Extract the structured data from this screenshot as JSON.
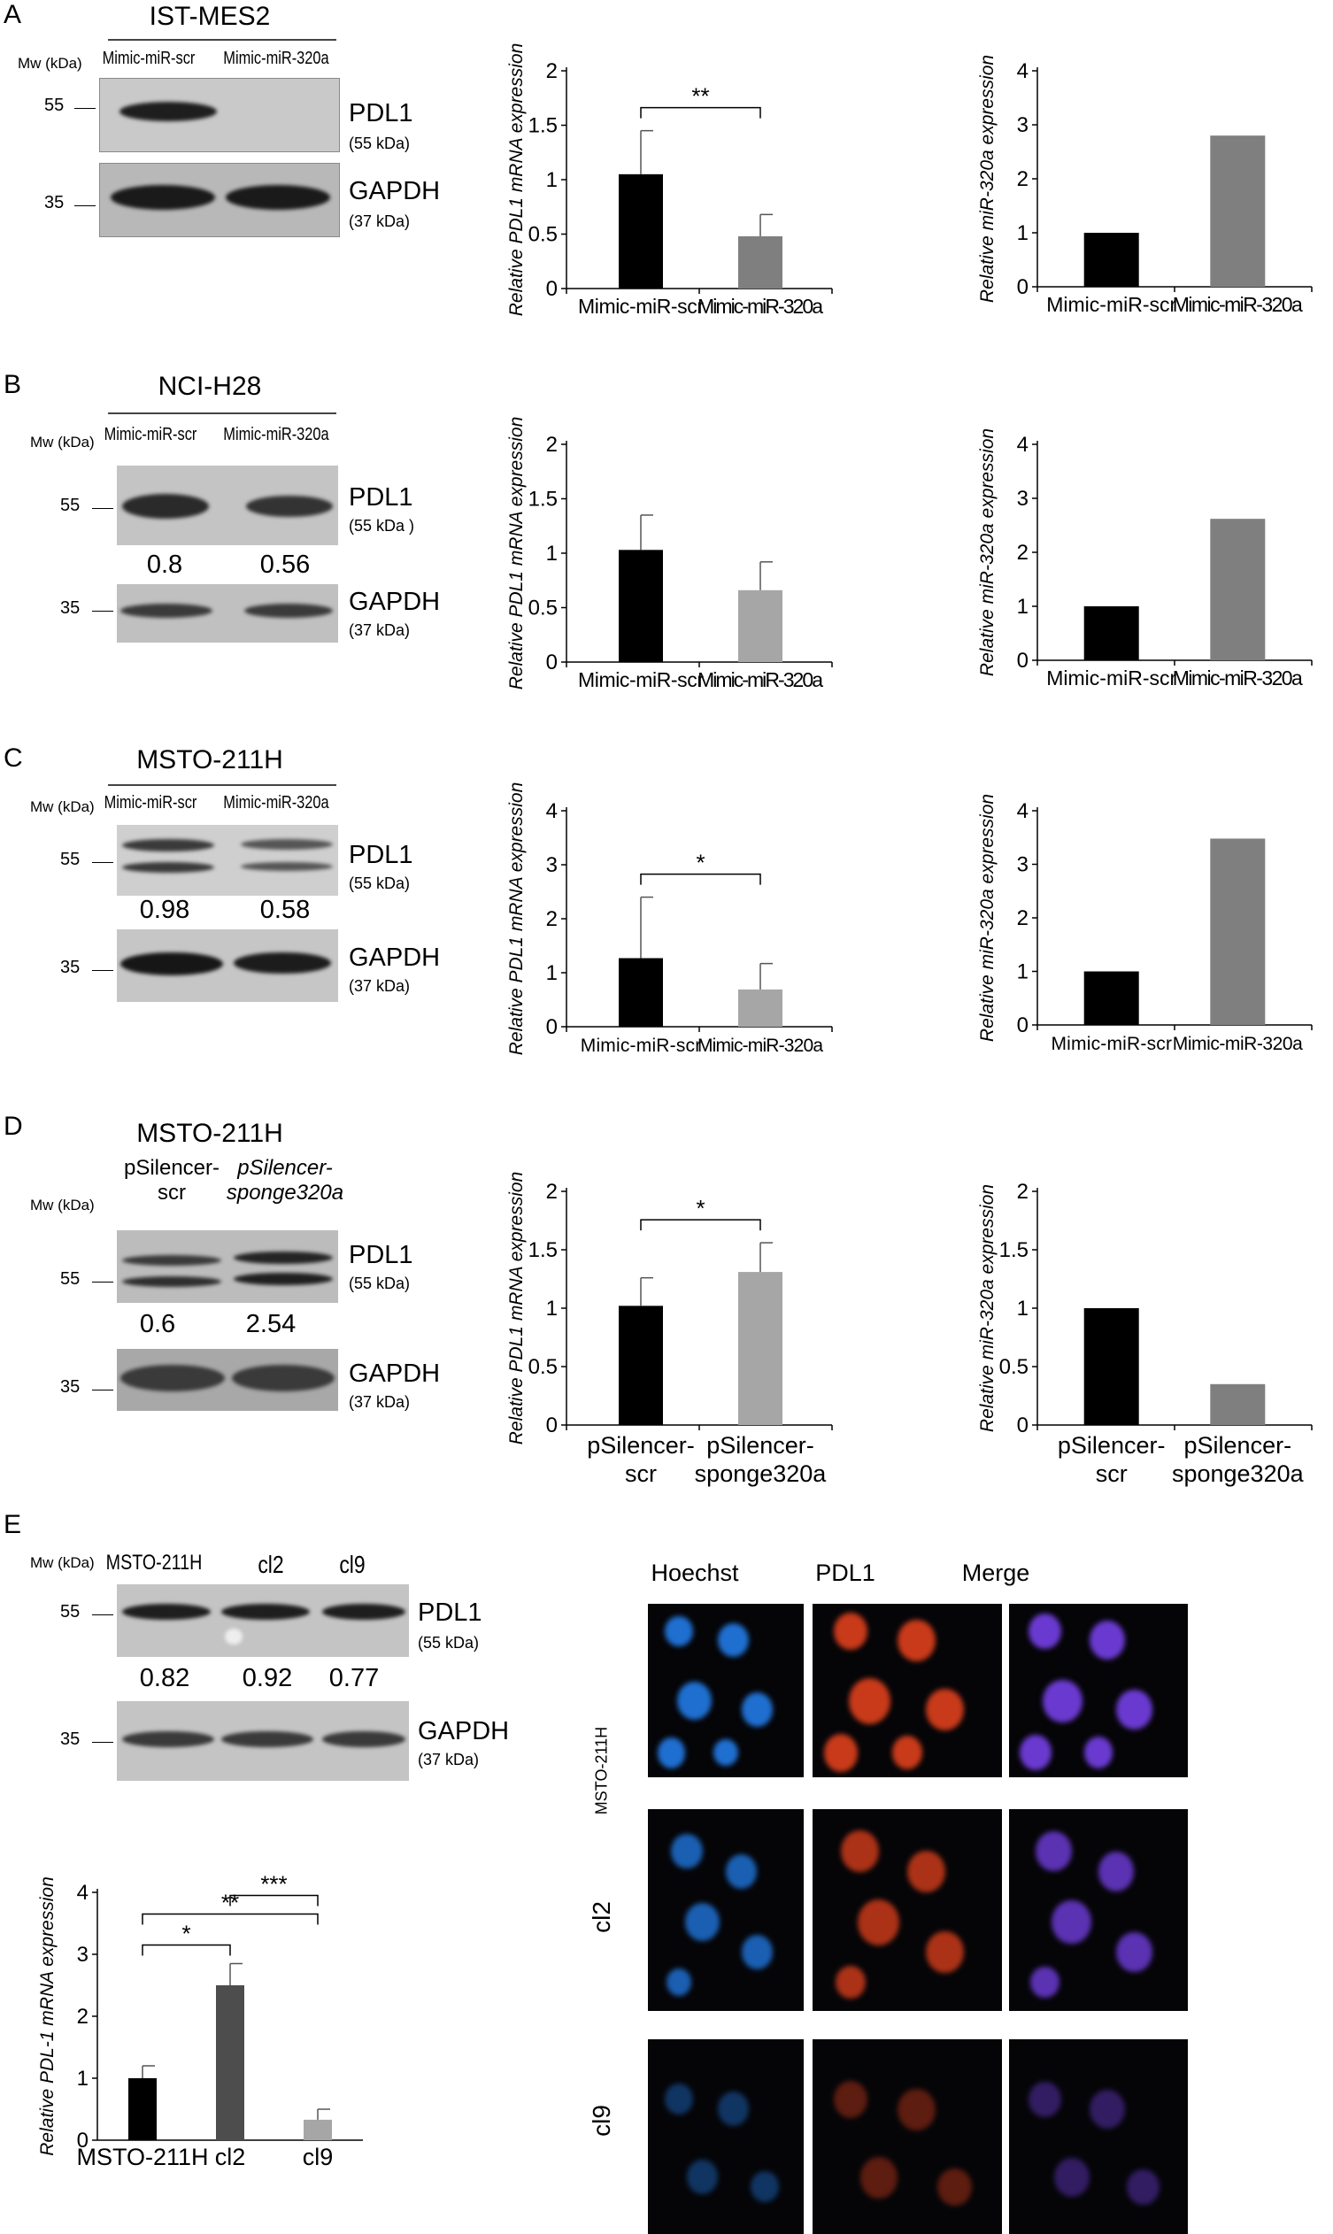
{
  "panels": [
    {
      "letter": "A",
      "cell_line": "IST-MES2",
      "mw_label": "Mw (kDa)",
      "lanes": [
        "Mimic-miR-scr",
        "Mimic-miR-320a"
      ],
      "mw_markers": [
        "55",
        "35"
      ],
      "bands": [
        {
          "name": "PDL1",
          "kda": "(55 kDa)"
        },
        {
          "name": "GAPDH",
          "kda": "(37 kDa)"
        }
      ],
      "quant": []
    },
    {
      "letter": "B",
      "cell_line": "NCI-H28",
      "mw_label": "Mw (kDa)",
      "lanes": [
        "Mimic-miR-scr",
        "Mimic-miR-320a"
      ],
      "mw_markers": [
        "55",
        "35"
      ],
      "bands": [
        {
          "name": "PDL1",
          "kda": "(55 kDa )"
        },
        {
          "name": "GAPDH",
          "kda": "(37 kDa)"
        }
      ],
      "quant": [
        "0.8",
        "0.56"
      ]
    },
    {
      "letter": "C",
      "cell_line": "MSTO-211H",
      "mw_label": "Mw (kDa)",
      "lanes": [
        "Mimic-miR-scr",
        "Mimic-miR-320a"
      ],
      "mw_markers": [
        "55",
        "35"
      ],
      "bands": [
        {
          "name": "PDL1",
          "kda": "(55 kDa)"
        },
        {
          "name": "GAPDH",
          "kda": "(37 kDa)"
        }
      ],
      "quant": [
        "0.98",
        "0.58"
      ]
    },
    {
      "letter": "D",
      "cell_line": "MSTO-211H",
      "mw_label": "Mw (kDa)",
      "lanes": [
        "pSilencer-scr",
        "pSilencer-sponge320a"
      ],
      "lanes_line1": [
        "pSilencer-",
        "pSilencer-"
      ],
      "lanes_line2": [
        "scr",
        "sponge320a"
      ],
      "mw_markers": [
        "55",
        "35"
      ],
      "bands": [
        {
          "name": "PDL1",
          "kda": "(55 kDa)"
        },
        {
          "name": "GAPDH",
          "kda": "(37 kDa)"
        }
      ],
      "quant": [
        "0.6",
        "2.54"
      ]
    },
    {
      "letter": "E",
      "cell_line": "",
      "mw_label": "Mw (kDa)",
      "lanes": [
        "MSTO-211H",
        "cl2",
        "cl9"
      ],
      "mw_markers": [
        "55",
        "35"
      ],
      "bands": [
        {
          "name": "PDL1",
          "kda": "(55 kDa)"
        },
        {
          "name": "GAPDH",
          "kda": "(37 kDa)"
        }
      ],
      "quant": [
        "0.82",
        "0.92",
        "0.77"
      ]
    }
  ],
  "microscopy": {
    "columns": [
      "Hoechst",
      "PDL1",
      "Merge"
    ],
    "rows": [
      "MSTO-211H",
      "cl2",
      "cl9"
    ],
    "colors": {
      "hoechst": "#1f6fd0",
      "pdl1": "#c83a1a",
      "merge": "#6a3ad0"
    }
  },
  "chart_data": [
    {
      "id": "A-pdl1",
      "type": "bar",
      "categories": [
        "Mimic-miR-scr",
        "Mimic-miR-320a"
      ],
      "values": [
        1.05,
        0.48
      ],
      "errors": [
        0.4,
        0.2
      ],
      "ylabel": "Relative PDL1 mRNA expression",
      "ylim": [
        0,
        2
      ],
      "yticks": [
        "0",
        "0.5",
        "1",
        "1.5",
        "2"
      ],
      "ytick_values": [
        0,
        0.5,
        1,
        1.5,
        2
      ],
      "colors": [
        "#000000",
        "#7f7f7f"
      ],
      "significance": [
        {
          "from": 0,
          "to": 1,
          "label": "**"
        }
      ]
    },
    {
      "id": "A-mir",
      "type": "bar",
      "categories": [
        "Mimic-miR-scr",
        "Mimic-miR-320a"
      ],
      "values": [
        1.0,
        2.8
      ],
      "errors": [],
      "ylabel": "Relative miR-320a expression",
      "ylim": [
        0,
        4
      ],
      "yticks": [
        "0",
        "1",
        "2",
        "3",
        "4"
      ],
      "ytick_values": [
        0,
        1,
        2,
        3,
        4
      ],
      "colors": [
        "#000000",
        "#7f7f7f"
      ],
      "significance": []
    },
    {
      "id": "B-pdl1",
      "type": "bar",
      "categories": [
        "Mimic-miR-scr",
        "Mimic-miR-320a"
      ],
      "values": [
        1.03,
        0.66
      ],
      "errors": [
        0.32,
        0.26
      ],
      "ylabel": "Relative PDL1 mRNA expression",
      "ylim": [
        0,
        2
      ],
      "yticks": [
        "0",
        "0.5",
        "1",
        "1.5",
        "2"
      ],
      "ytick_values": [
        0,
        0.5,
        1,
        1.5,
        2
      ],
      "colors": [
        "#000000",
        "#a6a6a6"
      ],
      "significance": []
    },
    {
      "id": "B-mir",
      "type": "bar",
      "categories": [
        "Mimic-miR-scr",
        "Mimic-miR-320a"
      ],
      "values": [
        1.0,
        2.62
      ],
      "errors": [],
      "ylabel": "Relative miR-320a expression",
      "ylim": [
        0,
        4
      ],
      "yticks": [
        "0",
        "1",
        "2",
        "3",
        "4"
      ],
      "ytick_values": [
        0,
        1,
        2,
        3,
        4
      ],
      "colors": [
        "#000000",
        "#7f7f7f"
      ],
      "significance": []
    },
    {
      "id": "C-pdl1",
      "type": "bar",
      "categories": [
        "Mimic-miR-scr",
        "Mimic-miR-320a"
      ],
      "values": [
        1.27,
        0.69
      ],
      "errors": [
        1.13,
        0.48
      ],
      "ylabel": "Relative PDL1 mRNA expression",
      "ylim": [
        0,
        4
      ],
      "yticks": [
        "0",
        "1",
        "2",
        "3",
        "4"
      ],
      "ytick_values": [
        0,
        1,
        2,
        3,
        4
      ],
      "colors": [
        "#000000",
        "#a6a6a6"
      ],
      "significance": [
        {
          "from": 0,
          "to": 1,
          "label": "*"
        }
      ]
    },
    {
      "id": "C-mir",
      "type": "bar",
      "categories": [
        "Mimic-miR-scr",
        "Mimic-miR-320a"
      ],
      "values": [
        1.0,
        3.48
      ],
      "errors": [],
      "ylabel": "Relative miR-320a expression",
      "ylim": [
        0,
        4
      ],
      "yticks": [
        "0",
        "1",
        "2",
        "3",
        "4"
      ],
      "ytick_values": [
        0,
        1,
        2,
        3,
        4
      ],
      "colors": [
        "#000000",
        "#7f7f7f"
      ],
      "significance": []
    },
    {
      "id": "D-pdl1",
      "type": "bar",
      "categories": [
        "pSilencer-scr",
        "pSilencer-sponge320a"
      ],
      "values": [
        1.02,
        1.31
      ],
      "errors": [
        0.24,
        0.25
      ],
      "ylabel": "Relative PDL1 mRNA expression",
      "ylim": [
        0,
        2
      ],
      "yticks": [
        "0",
        "0.5",
        "1",
        "1.5",
        "2"
      ],
      "ytick_values": [
        0,
        0.5,
        1,
        1.5,
        2
      ],
      "colors": [
        "#000000",
        "#a6a6a6"
      ],
      "significance": [
        {
          "from": 0,
          "to": 1,
          "label": "*"
        }
      ]
    },
    {
      "id": "D-mir",
      "type": "bar",
      "categories": [
        "pSilencer-scr",
        "pSilencer-sponge320a"
      ],
      "values": [
        1.0,
        0.35
      ],
      "errors": [],
      "ylabel": "Relative miR-320a expression",
      "ylim": [
        0,
        2
      ],
      "yticks": [
        "0",
        "0.5",
        "1",
        "1.5",
        "2"
      ],
      "ytick_values": [
        0,
        0.5,
        1,
        1.5,
        2
      ],
      "colors": [
        "#000000",
        "#7f7f7f"
      ],
      "significance": []
    },
    {
      "id": "E-pdl1",
      "type": "bar",
      "categories": [
        "MSTO-211H",
        "cl2",
        "cl9"
      ],
      "values": [
        1.0,
        2.5,
        0.33
      ],
      "errors": [
        0.2,
        0.35,
        0.17
      ],
      "ylabel": "Relative PDL-1 mRNA expression",
      "ylim": [
        0,
        4
      ],
      "yticks": [
        "0",
        "1",
        "2",
        "3",
        "4"
      ],
      "ytick_values": [
        0,
        1,
        2,
        3,
        4
      ],
      "colors": [
        "#000000",
        "#4d4d4d",
        "#a6a6a6"
      ],
      "significance": [
        {
          "from": 1,
          "to": 2,
          "label": "***"
        },
        {
          "from": 0,
          "to": 2,
          "label": "**"
        },
        {
          "from": 0,
          "to": 1,
          "label": "*"
        }
      ]
    }
  ]
}
